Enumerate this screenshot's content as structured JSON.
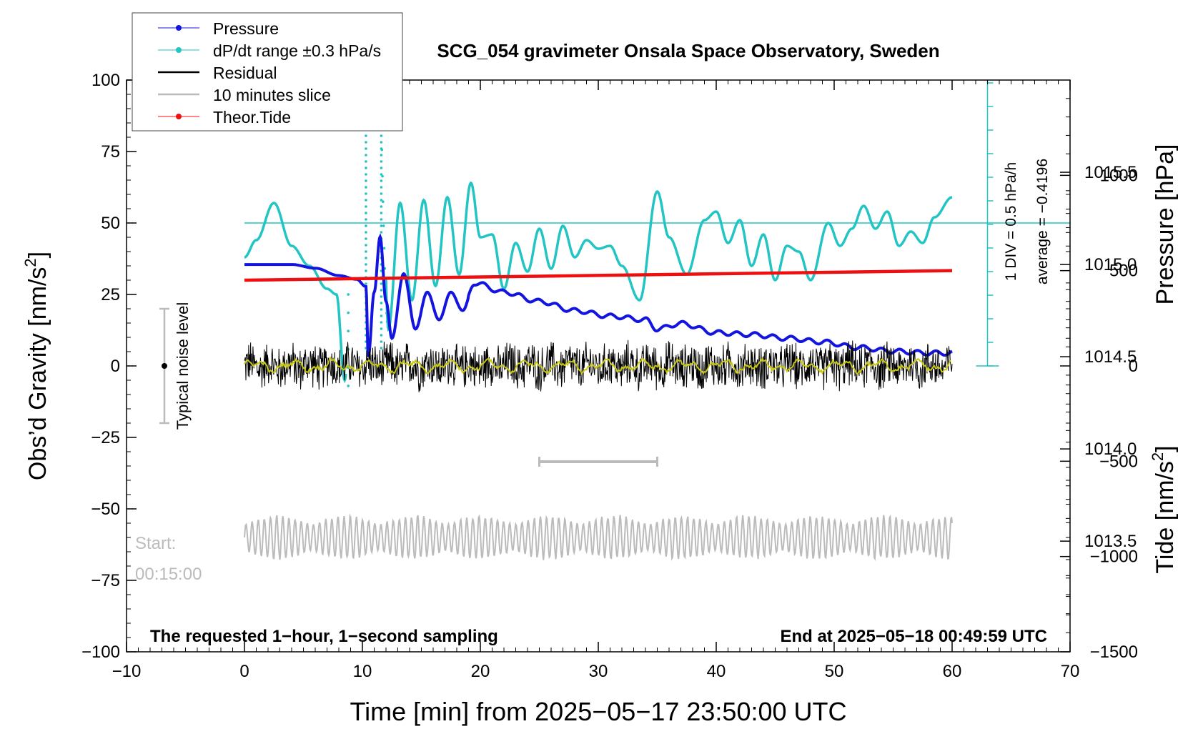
{
  "chart_data": {
    "type": "line",
    "title": "SCG_054 gravimeter Onsala Space Observatory, Sweden",
    "xlabel": "Time [min] from 2025−05−17 23:50:00 UTC",
    "ylabel_left": "Obs’d Gravity [nm/s",
    "ylabel_left_sup": "2",
    "ylabel_left_end": "]",
    "ylabel_right_pressure": "Pressure [hPa]",
    "ylabel_right_tide": "Tide [nm/s",
    "ylabel_right_tide_sup": "2",
    "ylabel_right_tide_end": "]",
    "xlim": [
      -10,
      70
    ],
    "ylim": [
      -100,
      100
    ],
    "x_ticks": [
      "−10",
      "0",
      "10",
      "20",
      "30",
      "40",
      "50",
      "60",
      "70"
    ],
    "y_ticks": [
      "100",
      "75",
      "50",
      "25",
      "0",
      "−25",
      "−50",
      "−75",
      "−100"
    ],
    "pressure_ticks": [
      "1015.5",
      "1015.0",
      "1014.5",
      "1014.0",
      "1013.5"
    ],
    "pressure_ylim": [
      1012.9,
      1016.0
    ],
    "tide_ticks": [
      "1000",
      "500",
      "0",
      "−500",
      "−1000",
      "−1500"
    ],
    "tide_ylim": [
      -1500,
      1500
    ],
    "legend": [
      "Pressure",
      "dP/dt range ±0.3 hPa/s",
      "Residual",
      "10 minutes slice",
      "Theor.Tide"
    ],
    "legend_position": "top-left",
    "noise_label": "Typical noise level",
    "noise_range": [
      -20,
      20
    ],
    "div_label": "1 DIV = 0.5 hPa/h",
    "average_label": "average = −0.4196",
    "start_label": "Start:",
    "start_time": "00:15:00",
    "bottom_left_note": "The requested 1−hour, 1−second sampling",
    "bottom_right_note": "End at 2025−05−18 00:49:59 UTC",
    "slice_range_min": [
      25,
      35
    ],
    "colors": {
      "pressure": "#1414e0",
      "dpdt": "#22c4c4",
      "residual": "#000000",
      "residual_smooth": "#c8c814",
      "slice": "#bbbbbb",
      "tide": "#ee1010",
      "dpdt_scale": "#22c4c4"
    },
    "series": [
      {
        "name": "Pressure",
        "axis": "pressure_hPa",
        "x": [
          0,
          2,
          4,
          6,
          8,
          9.5,
          10.3,
          10.5,
          11,
          11.5,
          12,
          12.5,
          13.5,
          14.5,
          15.5,
          16.5,
          17.5,
          18.5,
          19.5,
          22,
          25,
          28,
          31,
          34,
          35,
          37,
          40,
          43,
          46,
          49,
          52,
          55,
          58,
          60
        ],
        "values": [
          1015.0,
          1015.0,
          1015.0,
          1014.98,
          1014.94,
          1014.92,
          1014.88,
          1014.5,
          1014.85,
          1015.15,
          1014.8,
          1014.6,
          1014.95,
          1014.65,
          1014.85,
          1014.7,
          1014.85,
          1014.75,
          1014.9,
          1014.85,
          1014.8,
          1014.75,
          1014.72,
          1014.7,
          1014.65,
          1014.68,
          1014.63,
          1014.62,
          1014.6,
          1014.58,
          1014.55,
          1014.53,
          1014.52,
          1014.52
        ]
      },
      {
        "name": "dP/dt range ±0.3 hPa/s",
        "axis": "gravity_units",
        "x": [
          0,
          1,
          2.5,
          4,
          5.5,
          7,
          7.8,
          8.5,
          9.5,
          10.3,
          11,
          11.6,
          12.2,
          13.2,
          14.2,
          15.2,
          16.2,
          17.2,
          18.2,
          19.2,
          20,
          21,
          22,
          23,
          24,
          25,
          26,
          27,
          28,
          29,
          30,
          31,
          32,
          33.5,
          35,
          36,
          37.5,
          39,
          40,
          41,
          42,
          43,
          44,
          45,
          46,
          47,
          48,
          49.5,
          50.5,
          51.5,
          52.5,
          53.5,
          54.5,
          55.5,
          56.5,
          57.5,
          58.5,
          60
        ],
        "values": [
          38,
          44,
          57,
          42,
          35,
          27,
          25,
          -5,
          85,
          85,
          85,
          85,
          13,
          57,
          23,
          58,
          28,
          59,
          32,
          64,
          45,
          46,
          27,
          43,
          33,
          48,
          34,
          49,
          38,
          44,
          41,
          42,
          35,
          23,
          61,
          45,
          32,
          51,
          54,
          43,
          51,
          35,
          46,
          30,
          42,
          40,
          30,
          50,
          42,
          48,
          56,
          48,
          54,
          42,
          47,
          43,
          52,
          59
        ]
      },
      {
        "name": "Residual",
        "axis": "gravity_units",
        "x_range": [
          0,
          60
        ],
        "amplitude": 9
      },
      {
        "name": "10 minutes slice",
        "axis": "gravity_units",
        "x_range": [
          0,
          60
        ],
        "offset": -60,
        "amplitude": 8
      },
      {
        "name": "Theor.Tide",
        "axis": "tide_nm_s2",
        "x": [
          0,
          60
        ],
        "values": [
          450,
          500
        ]
      }
    ]
  }
}
